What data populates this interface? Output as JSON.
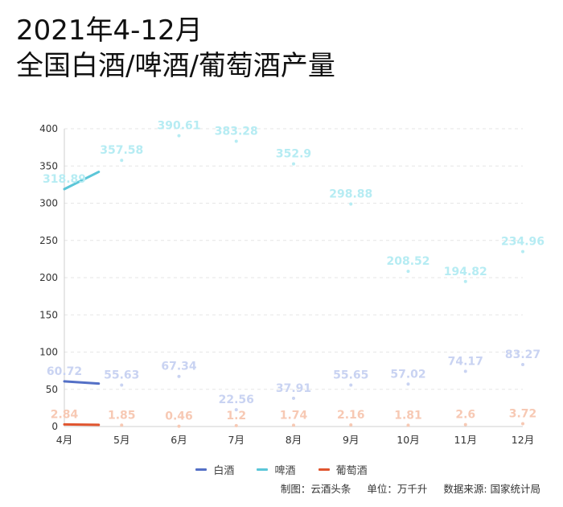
{
  "title_lines": [
    "2021年4-12月",
    "全国白酒/啤酒/葡萄酒产量"
  ],
  "chart_data": {
    "type": "line",
    "categories": [
      "4月",
      "5月",
      "6月",
      "7月",
      "8月",
      "9月",
      "10月",
      "11月",
      "12月"
    ],
    "ylim": [
      0,
      400
    ],
    "yticks": [
      0,
      50,
      100,
      150,
      200,
      250,
      300,
      350,
      400
    ],
    "grid": true,
    "legend_position": "bottom",
    "series": [
      {
        "name": "白酒",
        "color": "#5470c6",
        "label_color": "#c9d3f2",
        "values": [
          60.72,
          55.63,
          67.34,
          22.56,
          37.91,
          55.65,
          57.02,
          74.17,
          83.27
        ],
        "labels": [
          "60.72",
          "55.63",
          "67.34",
          "22.56",
          "37.91",
          "55.65",
          "57.02",
          "74.17",
          "83.27"
        ]
      },
      {
        "name": "啤酒",
        "color": "#5bc6d8",
        "label_color": "#b6ecf3",
        "values": [
          318.89,
          357.58,
          390.61,
          383.28,
          352.9,
          298.88,
          208.52,
          194.82,
          234.96
        ],
        "labels": [
          "318.89",
          "357.58",
          "390.61",
          "383.28",
          "352.9",
          "298.88",
          "208.52",
          "194.82",
          "234.96"
        ]
      },
      {
        "name": "葡萄酒",
        "color": "#e0552f",
        "label_color": "#f7c9b4",
        "values": [
          2.84,
          1.85,
          0.46,
          1.2,
          1.74,
          2.16,
          1.81,
          2.6,
          3.72
        ],
        "labels": [
          "2.84",
          "1.85",
          "0.46",
          "1.2",
          "1.74",
          "2.16",
          "1.81",
          "2.6",
          "3.72"
        ]
      }
    ]
  },
  "footer": {
    "made_by": "制图：云酒头条",
    "unit": "单位：万千升",
    "source": "数据来源: 国家统计局"
  }
}
